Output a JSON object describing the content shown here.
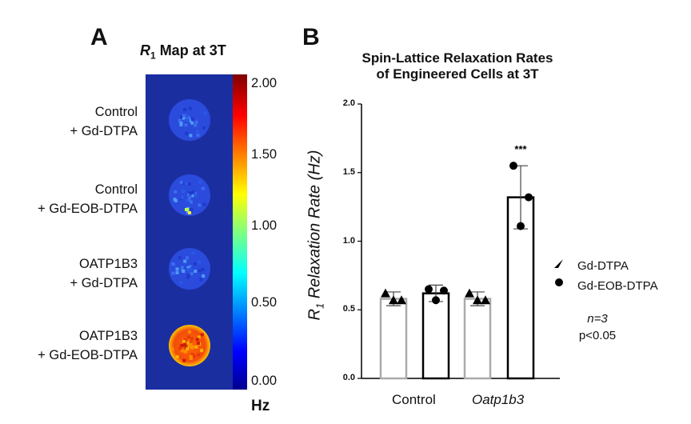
{
  "panel_a": {
    "letter": "A",
    "title_r": "R",
    "title_sub": "1",
    "title_rest": " Map at 3T",
    "rows": [
      {
        "line1": "Control",
        "line2": "+ Gd-DTPA",
        "intensity": "low"
      },
      {
        "line1": "Control",
        "line2": "+ Gd-EOB-DTPA",
        "intensity": "low"
      },
      {
        "line1": "OATP1B3",
        "line2": "+ Gd-DTPA",
        "intensity": "low"
      },
      {
        "line1": "OATP1B3",
        "line2": "+ Gd-EOB-DTPA",
        "intensity": "high"
      }
    ],
    "colorbar": {
      "ticks": [
        "2.00",
        "1.50",
        "1.00",
        "0.50",
        "0.00"
      ],
      "unit": "Hz",
      "min": 0,
      "max": 2
    }
  },
  "panel_b": {
    "letter": "B"
  },
  "chart_data": {
    "type": "bar",
    "title": "Spin-Lattice Relaxation Rates of Engineered Cells at 3T",
    "title_lines": [
      "Spin-Lattice Relaxation Rates",
      "of Engineered Cells at 3T"
    ],
    "ylabel_r": "R",
    "ylabel_sub": "1",
    "ylabel_rest": " Relaxation Rate (Hz)",
    "ylim": [
      0,
      2.0
    ],
    "yticks": [
      "0.0",
      "0.5",
      "1.0",
      "1.5",
      "2.0"
    ],
    "categories": [
      "Control",
      "Oatp1b3"
    ],
    "series": [
      {
        "name": "Gd-DTPA",
        "marker": "triangle",
        "edge_color": "#aaaaaa",
        "values": [
          0.58,
          0.58
        ],
        "errors": [
          0.05,
          0.05
        ],
        "points": [
          [
            0.62,
            0.57,
            0.57
          ],
          [
            0.62,
            0.57,
            0.57
          ]
        ]
      },
      {
        "name": "Gd-EOB-DTPA",
        "marker": "circle",
        "edge_color": "#000000",
        "values": [
          0.62,
          1.32
        ],
        "errors": [
          0.06,
          0.23
        ],
        "points": [
          [
            0.65,
            0.64,
            0.57
          ],
          [
            1.55,
            1.32,
            1.11
          ]
        ]
      }
    ],
    "annotations": [
      {
        "category": "Oatp1b3",
        "series": "Gd-EOB-DTPA",
        "text": "***"
      }
    ],
    "legend": [
      {
        "label": "Gd-DTPA",
        "marker": "triangle"
      },
      {
        "label": "Gd-EOB-DTPA",
        "marker": "circle"
      }
    ],
    "note_n": "n=3",
    "note_p": "p<0.05"
  }
}
